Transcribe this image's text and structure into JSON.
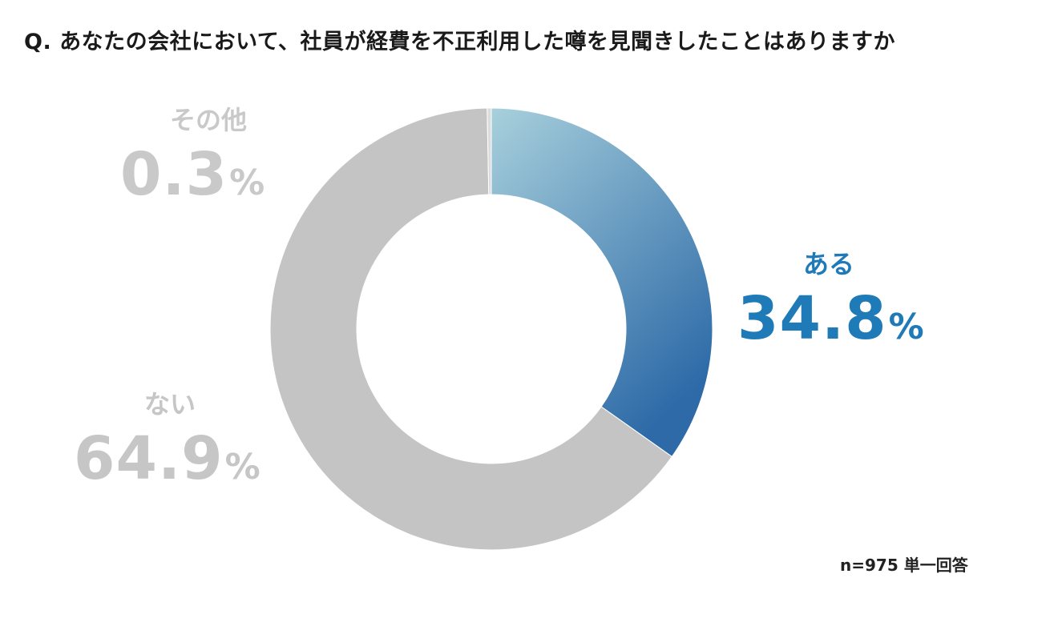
{
  "title": "Q. あなたの会社において、社員が経費を不正利用した噂を見聞きしたことはありますか",
  "note": "n=975 単一回答",
  "chart_data": {
    "type": "pie",
    "donut": true,
    "start": "top",
    "direction": "clockwise",
    "slices": [
      {
        "label": "ある",
        "value": 34.8,
        "value_text": "34.8",
        "unit": "%",
        "color_start": "#a8d0dc",
        "color_end": "#2d6aa7",
        "label_color": "#1f7ab8"
      },
      {
        "label": "ない",
        "value": 64.9,
        "value_text": "64.9",
        "unit": "%",
        "color": "#c4c4c4",
        "label_color": "#c6c6c6"
      },
      {
        "label": "その他",
        "value": 0.3,
        "value_text": "0.3",
        "unit": "%",
        "color": "#dcdcdc",
        "label_color": "#c9c9c9"
      }
    ]
  }
}
